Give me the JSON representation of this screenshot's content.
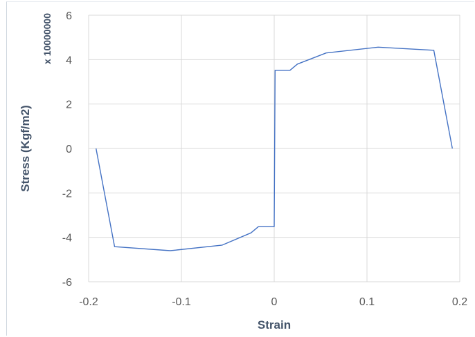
{
  "chart_data": {
    "type": "line",
    "xlabel": "Strain",
    "ylabel": "Stress (Kgf/m2)",
    "y_unit_label": "x 10000000",
    "xlim": [
      -0.2,
      0.2
    ],
    "ylim": [
      -6,
      6
    ],
    "x_ticks": [
      -0.2,
      -0.1,
      0,
      0.1,
      0.2
    ],
    "x_tick_labels": [
      "-0.2",
      "-0.1",
      "0",
      "0.1",
      "0.2"
    ],
    "y_ticks": [
      -6,
      -4,
      -2,
      0,
      2,
      4,
      6
    ],
    "y_tick_labels": [
      "-6",
      "-4",
      "-2",
      "0",
      "2",
      "4",
      "6"
    ],
    "grid": true,
    "line_color": "#4472c4",
    "grid_color": "#d9d9d9",
    "series": [
      {
        "x": [
          -0.192,
          -0.172,
          -0.112,
          -0.056,
          -0.025,
          -0.017,
          -0.012,
          0,
          0.001,
          0.012,
          0.017,
          0.025,
          0.056,
          0.112,
          0.172,
          0.192
        ],
        "y": [
          0,
          -4.42,
          -4.6,
          -4.35,
          -3.8,
          -3.52,
          -3.52,
          -3.52,
          3.52,
          3.52,
          3.52,
          3.8,
          4.3,
          4.56,
          4.42,
          0
        ]
      }
    ]
  }
}
